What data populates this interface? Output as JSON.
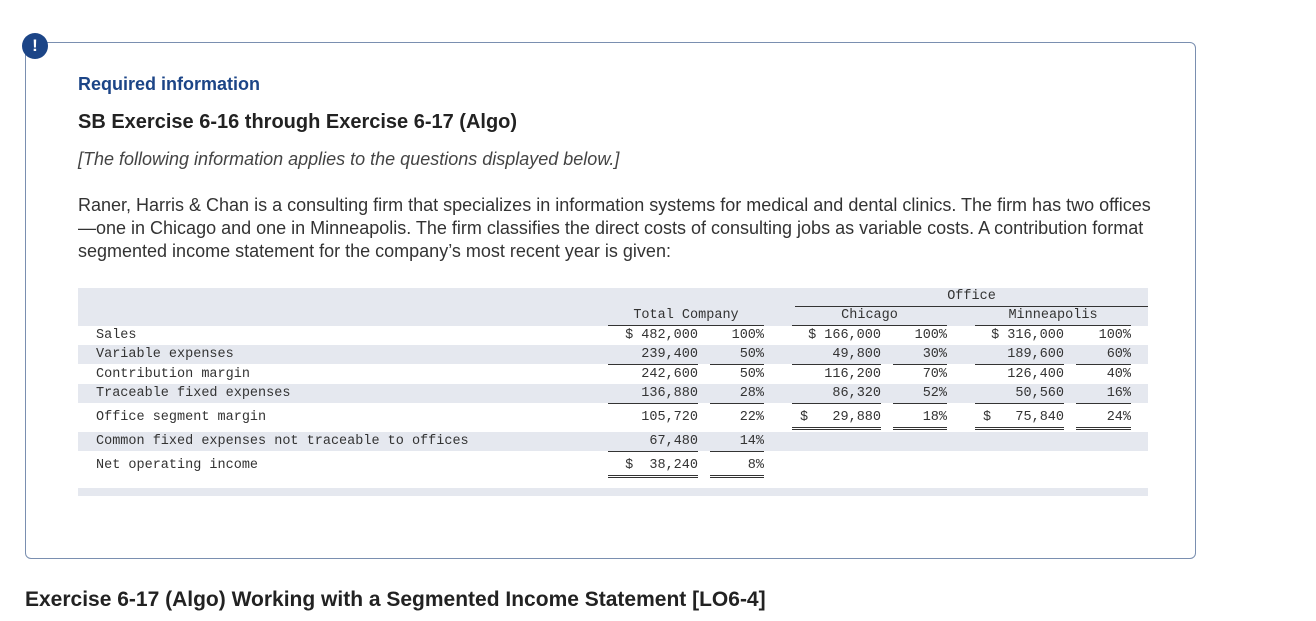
{
  "header": {
    "icon": "!",
    "label": "Required information",
    "title": "SB Exercise 6-16 through Exercise 6-17 (Algo)",
    "note": "[The following information applies to the questions displayed below.]",
    "paragraph": "Raner, Harris & Chan is a consulting firm that specializes in information systems for medical and dental clinics. The firm has two offices—one in Chicago and one in Minneapolis. The firm classifies the direct costs of consulting jobs as variable costs. A contribution format segmented income statement for the company’s most recent year is given:"
  },
  "table": {
    "group_header": "Office",
    "columns": [
      "Total Company",
      "Chicago",
      "Minneapolis"
    ],
    "rows": [
      {
        "label": "Sales",
        "cells": [
          "$ 482,000",
          "100%",
          "$ 166,000",
          "100%",
          "$ 316,000",
          "100%"
        ]
      },
      {
        "label": "Variable expenses",
        "cells": [
          "239,400",
          "50%",
          "49,800",
          "30%",
          "189,600",
          "60%"
        ]
      },
      {
        "label": "Contribution margin",
        "cells": [
          "242,600",
          "50%",
          "116,200",
          "70%",
          "126,400",
          "40%"
        ]
      },
      {
        "label": "Traceable fixed expenses",
        "cells": [
          "136,880",
          "28%",
          "86,320",
          "52%",
          "50,560",
          "16%"
        ]
      },
      {
        "label": "Office segment margin",
        "cells": [
          "105,720",
          "22%",
          "$   29,880",
          "18%",
          "$   75,840",
          "24%"
        ]
      },
      {
        "label": "Common fixed expenses not traceable to offices",
        "cells": [
          "67,480",
          "14%"
        ]
      },
      {
        "label": "Net operating income",
        "cells": [
          "$  38,240",
          "8%"
        ]
      }
    ]
  },
  "footer": {
    "title": "Exercise 6-17 (Algo) Working with a Segmented Income Statement [LO6-4]"
  }
}
